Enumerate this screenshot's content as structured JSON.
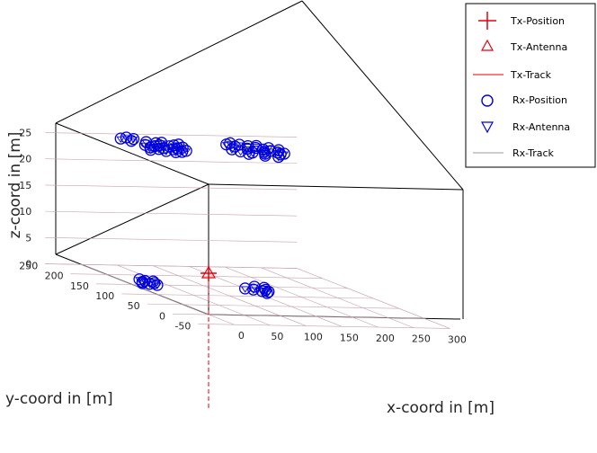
{
  "chart_data": {
    "type": "scatter",
    "xlabel": "x-coord in [m]",
    "ylabel": "y-coord in [m]",
    "zlabel": "z-coord in [m]",
    "xlim": [
      -50,
      300
    ],
    "ylim": [
      -50,
      250
    ],
    "zlim": [
      0,
      25
    ],
    "x_ticks": [
      "0",
      "50",
      "100",
      "150",
      "200",
      "250",
      "300"
    ],
    "y_ticks": [
      "-50",
      "0",
      "50",
      "100",
      "150",
      "200",
      "250"
    ],
    "z_ticks": [
      "0",
      "5",
      "10",
      "15",
      "20",
      "25"
    ],
    "grid": true,
    "legend_position": "top-right",
    "legend": [
      {
        "label": "Tx-Position",
        "symbol": "plus",
        "color": "#e8000b"
      },
      {
        "label": "Tx-Antenna",
        "symbol": "triangle-up",
        "color": "#e8000b"
      },
      {
        "label": "Tx-Track",
        "symbol": "line",
        "color": "#e8000b"
      },
      {
        "label": "Rx-Position",
        "symbol": "circle",
        "color": "#0000dd"
      },
      {
        "label": "Rx-Antenna",
        "symbol": "triangle-down",
        "color": "#0000dd"
      },
      {
        "label": "Rx-Track",
        "symbol": "line",
        "color": "#9a9a9a"
      }
    ],
    "tx": {
      "x": 0,
      "y": 0,
      "z": 0
    },
    "rx_positions": [
      {
        "x": 25,
        "y": 165,
        "z": 0
      },
      {
        "x": 32,
        "y": 170,
        "z": 0
      },
      {
        "x": 38,
        "y": 160,
        "z": 0
      },
      {
        "x": 28,
        "y": 155,
        "z": 0
      },
      {
        "x": 35,
        "y": 150,
        "z": 0
      },
      {
        "x": 20,
        "y": 158,
        "z": 0
      },
      {
        "x": 42,
        "y": 168,
        "z": 0
      },
      {
        "x": 30,
        "y": 178,
        "z": 0
      },
      {
        "x": 60,
        "y": 190,
        "z": 25
      },
      {
        "x": 70,
        "y": 195,
        "z": 25
      },
      {
        "x": 80,
        "y": 190,
        "z": 25
      },
      {
        "x": 65,
        "y": 180,
        "z": 25
      },
      {
        "x": 75,
        "y": 175,
        "z": 25
      },
      {
        "x": 85,
        "y": 180,
        "z": 25
      },
      {
        "x": 55,
        "y": 175,
        "z": 25
      },
      {
        "x": 90,
        "y": 195,
        "z": 25
      },
      {
        "x": 72,
        "y": 205,
        "z": 25
      },
      {
        "x": 62,
        "y": 210,
        "z": 25
      },
      {
        "x": 50,
        "y": 195,
        "z": 25
      },
      {
        "x": 82,
        "y": 208,
        "z": 25
      },
      {
        "x": 95,
        "y": 185,
        "z": 25
      },
      {
        "x": 58,
        "y": 165,
        "z": 25
      },
      {
        "x": 68,
        "y": 160,
        "z": 25
      },
      {
        "x": 48,
        "y": 182,
        "z": 25
      },
      {
        "x": 88,
        "y": 168,
        "z": 25
      },
      {
        "x": 78,
        "y": 162,
        "z": 25
      },
      {
        "x": 40,
        "y": 170,
        "z": 25
      },
      {
        "x": 100,
        "y": 200,
        "z": 25
      },
      {
        "x": 45,
        "y": 215,
        "z": 25
      },
      {
        "x": 55,
        "y": 225,
        "z": 25
      },
      {
        "x": 50,
        "y": 232,
        "z": 25
      },
      {
        "x": 38,
        "y": 226,
        "z": 25
      },
      {
        "x": 150,
        "y": 140,
        "z": 0
      },
      {
        "x": 158,
        "y": 135,
        "z": 0
      },
      {
        "x": 165,
        "y": 128,
        "z": 0
      },
      {
        "x": 172,
        "y": 125,
        "z": 0
      },
      {
        "x": 165,
        "y": 118,
        "z": 0
      },
      {
        "x": 175,
        "y": 135,
        "z": 0
      },
      {
        "x": 180,
        "y": 145,
        "z": 0
      },
      {
        "x": 170,
        "y": 150,
        "z": 0
      },
      {
        "x": 170,
        "y": 205,
        "z": 25
      },
      {
        "x": 180,
        "y": 212,
        "z": 25
      },
      {
        "x": 188,
        "y": 205,
        "z": 25
      },
      {
        "x": 175,
        "y": 195,
        "z": 25
      },
      {
        "x": 195,
        "y": 198,
        "z": 25
      },
      {
        "x": 200,
        "y": 190,
        "z": 25
      },
      {
        "x": 185,
        "y": 185,
        "z": 25
      },
      {
        "x": 205,
        "y": 182,
        "z": 25
      },
      {
        "x": 210,
        "y": 175,
        "z": 25
      },
      {
        "x": 215,
        "y": 168,
        "z": 25
      },
      {
        "x": 198,
        "y": 170,
        "z": 25
      },
      {
        "x": 192,
        "y": 160,
        "z": 25
      },
      {
        "x": 212,
        "y": 158,
        "z": 25
      },
      {
        "x": 220,
        "y": 162,
        "z": 25
      },
      {
        "x": 178,
        "y": 165,
        "z": 25
      },
      {
        "x": 165,
        "y": 170,
        "z": 25
      },
      {
        "x": 160,
        "y": 180,
        "z": 25
      },
      {
        "x": 185,
        "y": 150,
        "z": 25
      },
      {
        "x": 200,
        "y": 145,
        "z": 25
      },
      {
        "x": 225,
        "y": 180,
        "z": 25
      },
      {
        "x": 168,
        "y": 158,
        "z": 25
      },
      {
        "x": 208,
        "y": 200,
        "z": 25
      },
      {
        "x": 218,
        "y": 190,
        "z": 25
      }
    ]
  }
}
